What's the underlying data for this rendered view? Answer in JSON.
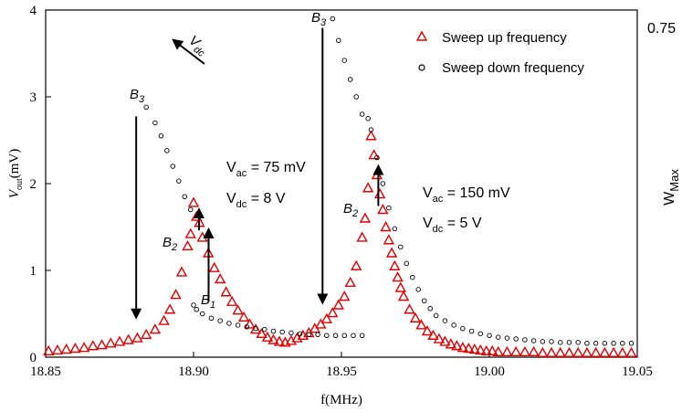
{
  "chart_data": {
    "type": "scatter",
    "title": "",
    "xlabel": "f(MHz)",
    "ylabel": "V_out(mV)",
    "ylabel_parts": {
      "main": "V",
      "sub": "out",
      "unit": "(mV)"
    },
    "right_label": {
      "main": "W",
      "sub": "Max"
    },
    "right_tick": "0.75",
    "xlim": [
      18.85,
      19.05
    ],
    "ylim": [
      0,
      4
    ],
    "x_ticks": [
      18.85,
      18.9,
      18.95,
      19.0,
      19.05
    ],
    "x_tick_labels": [
      "18.85",
      "18.90",
      "18.95",
      "19.00",
      "19.05"
    ],
    "y_ticks": [
      0,
      1,
      2,
      3,
      4
    ],
    "y_tick_labels": [
      "0",
      "1",
      "2",
      "3",
      "4"
    ],
    "grid": false,
    "legend_position": "top-right",
    "series": [
      {
        "name": "Sweep up frequency",
        "marker": "triangle",
        "color": "#e00000",
        "x": [
          18.851,
          18.854,
          18.857,
          18.86,
          18.863,
          18.866,
          18.869,
          18.872,
          18.875,
          18.878,
          18.881,
          18.884,
          18.887,
          18.89,
          18.892,
          18.894,
          18.896,
          18.898,
          18.899,
          18.9,
          18.901,
          18.902,
          18.903,
          18.905,
          18.907,
          18.909,
          18.911,
          18.913,
          18.915,
          18.917,
          18.919,
          18.921,
          18.923,
          18.925,
          18.927,
          18.929,
          18.931,
          18.933,
          18.935,
          18.937,
          18.939,
          18.941,
          18.943,
          18.945,
          18.947,
          18.949,
          18.951,
          18.953,
          18.955,
          18.957,
          18.958,
          18.959,
          18.96,
          18.961,
          18.962,
          18.963,
          18.964,
          18.965,
          18.966,
          18.967,
          18.968,
          18.969,
          18.97,
          18.971,
          18.973,
          18.975,
          18.977,
          18.979,
          18.981,
          18.983,
          18.985,
          18.987,
          18.989,
          18.991,
          18.993,
          18.995,
          18.997,
          18.999,
          19.001,
          19.003,
          19.006,
          19.009,
          19.012,
          19.015,
          19.018,
          19.021,
          19.024,
          19.027,
          19.03,
          19.033,
          19.036,
          19.039,
          19.042,
          19.045,
          19.048
        ],
        "values": [
          0.07,
          0.08,
          0.09,
          0.1,
          0.11,
          0.13,
          0.14,
          0.16,
          0.18,
          0.2,
          0.22,
          0.26,
          0.32,
          0.42,
          0.55,
          0.72,
          0.98,
          1.28,
          1.42,
          1.78,
          1.62,
          1.55,
          1.38,
          1.2,
          1.03,
          0.9,
          0.75,
          0.64,
          0.54,
          0.46,
          0.38,
          0.32,
          0.27,
          0.23,
          0.2,
          0.18,
          0.17,
          0.19,
          0.22,
          0.25,
          0.28,
          0.33,
          0.38,
          0.44,
          0.51,
          0.6,
          0.7,
          0.86,
          1.05,
          1.38,
          1.6,
          1.95,
          2.55,
          2.33,
          2.1,
          1.88,
          1.7,
          1.5,
          1.35,
          1.2,
          1.05,
          0.92,
          0.8,
          0.7,
          0.55,
          0.45,
          0.37,
          0.3,
          0.25,
          0.21,
          0.18,
          0.15,
          0.13,
          0.11,
          0.1,
          0.09,
          0.08,
          0.07,
          0.07,
          0.06,
          0.06,
          0.06,
          0.06,
          0.06,
          0.05,
          0.05,
          0.05,
          0.05,
          0.05,
          0.05,
          0.05,
          0.05,
          0.05,
          0.05,
          0.05
        ]
      },
      {
        "name": "Sweep down frequency",
        "marker": "circle",
        "color": "#000000",
        "x": [
          18.884,
          18.887,
          18.889,
          18.891,
          18.893,
          18.895,
          18.897,
          18.899,
          18.9,
          18.901,
          18.903,
          18.906,
          18.909,
          18.912,
          18.915,
          18.918,
          18.921,
          18.924,
          18.927,
          18.93,
          18.933,
          18.936,
          18.939,
          18.942,
          18.945,
          18.948,
          18.951,
          18.954,
          18.957,
          18.96,
          18.962,
          18.964,
          18.966,
          18.968,
          18.97,
          18.972,
          18.974,
          18.976,
          18.978,
          18.98,
          18.982,
          18.985,
          18.988,
          18.991,
          18.994,
          18.997,
          19.0,
          19.003,
          19.006,
          19.009,
          19.012,
          19.015,
          19.018,
          19.021,
          19.024,
          19.027,
          19.03,
          19.033,
          19.036,
          19.039,
          19.042,
          19.045,
          19.048,
          18.947,
          18.949,
          18.951,
          18.953,
          18.955,
          18.957,
          18.959
        ],
        "values": [
          2.88,
          2.7,
          2.55,
          2.38,
          2.2,
          2.03,
          1.85,
          1.7,
          0.6,
          0.55,
          0.5,
          0.45,
          0.42,
          0.39,
          0.37,
          0.35,
          0.33,
          0.32,
          0.3,
          0.29,
          0.28,
          0.27,
          0.26,
          0.26,
          0.25,
          0.25,
          0.25,
          0.25,
          0.25,
          2.62,
          2.3,
          2.0,
          1.72,
          1.48,
          1.27,
          1.08,
          0.92,
          0.78,
          0.65,
          0.56,
          0.48,
          0.42,
          0.37,
          0.33,
          0.3,
          0.27,
          0.25,
          0.23,
          0.22,
          0.21,
          0.2,
          0.19,
          0.18,
          0.18,
          0.17,
          0.17,
          0.17,
          0.16,
          0.16,
          0.16,
          0.16,
          0.16,
          0.16,
          3.9,
          3.65,
          3.42,
          3.2,
          3.0,
          2.8,
          2.75
        ]
      }
    ],
    "annotations": {
      "arrow_label": {
        "main": "V",
        "sub": "dc"
      },
      "left_params": [
        {
          "main": "V",
          "sub": "ac",
          "rest": " = 75 mV"
        },
        {
          "main": "V",
          "sub": "dc",
          "rest": " = 8 V"
        }
      ],
      "right_params": [
        {
          "main": "V",
          "sub": "ac",
          "rest": " = 150 mV"
        },
        {
          "main": "V",
          "sub": "dc",
          "rest": " = 5 V"
        }
      ],
      "points": [
        {
          "main": "B",
          "sub": "3",
          "x": 18.884,
          "y": 2.88,
          "direction": "down",
          "to_y": 0.46
        },
        {
          "main": "B",
          "sub": "2",
          "x": 18.9,
          "y": 1.42,
          "direction": "up",
          "to_y": 1.7
        },
        {
          "main": "B",
          "sub": "1",
          "x": 18.902,
          "y": 0.6,
          "direction": "up",
          "to_y": 1.47
        },
        {
          "main": "B",
          "sub": "3",
          "x": 18.947,
          "y": 3.9,
          "direction": "down",
          "to_y": 0.63
        },
        {
          "main": "B",
          "sub": "2",
          "x": 18.96,
          "y": 1.7,
          "direction": "up",
          "to_y": 2.2
        }
      ]
    }
  }
}
